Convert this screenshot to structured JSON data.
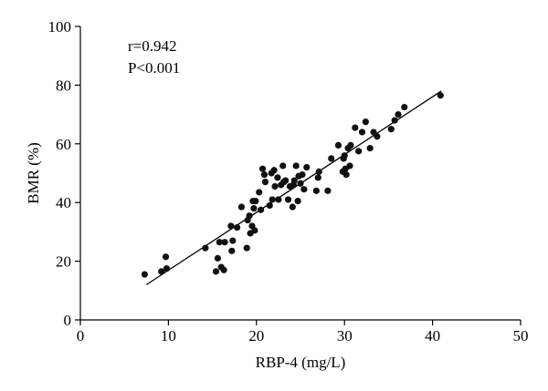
{
  "chart_data": {
    "type": "scatter",
    "xlabel": "RBP-4 (mg/L)",
    "ylabel": "BMR (%)",
    "xlim": [
      0,
      50
    ],
    "ylim": [
      0,
      100
    ],
    "xticks": [
      0,
      10,
      20,
      30,
      40,
      50
    ],
    "yticks": [
      0,
      20,
      40,
      60,
      80,
      100
    ],
    "annotations": [
      "r=0.942",
      "P<0.001"
    ],
    "grid": false,
    "legend": "none",
    "point_color": "#111111",
    "fit_line": {
      "x": [
        7.5,
        41
      ],
      "y": [
        12,
        78
      ]
    },
    "points": [
      [
        7.3,
        15.5
      ],
      [
        9.2,
        16.5
      ],
      [
        9.7,
        21.5
      ],
      [
        9.8,
        17.5
      ],
      [
        14.2,
        24.5
      ],
      [
        15.4,
        16.5
      ],
      [
        15.6,
        21
      ],
      [
        15.8,
        26.5
      ],
      [
        16.0,
        18
      ],
      [
        16.3,
        17
      ],
      [
        16.4,
        26.5
      ],
      [
        17.1,
        32
      ],
      [
        17.2,
        23.5
      ],
      [
        17.3,
        27
      ],
      [
        17.8,
        31.5
      ],
      [
        18.3,
        38.5
      ],
      [
        18.9,
        24.5
      ],
      [
        19.0,
        34
      ],
      [
        19.2,
        35.5
      ],
      [
        19.3,
        29.5
      ],
      [
        19.5,
        32
      ],
      [
        19.6,
        40.5
      ],
      [
        19.7,
        38
      ],
      [
        19.8,
        30.5
      ],
      [
        19.9,
        40.5
      ],
      [
        20.3,
        43.5
      ],
      [
        20.5,
        37.5
      ],
      [
        20.7,
        51.5
      ],
      [
        20.9,
        49.5
      ],
      [
        21.0,
        47
      ],
      [
        21.5,
        39
      ],
      [
        21.7,
        50
      ],
      [
        21.8,
        41
      ],
      [
        22.0,
        51
      ],
      [
        22.1,
        45.5
      ],
      [
        22.4,
        48.5
      ],
      [
        22.5,
        41
      ],
      [
        22.8,
        46
      ],
      [
        23.0,
        52.5
      ],
      [
        23.1,
        47
      ],
      [
        23.3,
        47.5
      ],
      [
        23.6,
        41
      ],
      [
        23.8,
        45.5
      ],
      [
        24.1,
        38.5
      ],
      [
        24.2,
        46
      ],
      [
        24.3,
        47.5
      ],
      [
        24.5,
        52.5
      ],
      [
        24.7,
        40.5
      ],
      [
        24.8,
        49
      ],
      [
        25.0,
        46.5
      ],
      [
        25.2,
        49.5
      ],
      [
        25.4,
        44.5
      ],
      [
        25.7,
        52
      ],
      [
        26.8,
        44
      ],
      [
        27.0,
        48.5
      ],
      [
        27.1,
        50.5
      ],
      [
        28.1,
        44
      ],
      [
        28.5,
        55
      ],
      [
        29.3,
        59.5
      ],
      [
        29.8,
        50.5
      ],
      [
        29.9,
        55
      ],
      [
        30.0,
        56
      ],
      [
        30.1,
        51.5
      ],
      [
        30.2,
        49.5
      ],
      [
        30.4,
        58.5
      ],
      [
        30.6,
        52.5
      ],
      [
        30.7,
        59.5
      ],
      [
        31.2,
        65.5
      ],
      [
        31.6,
        57.5
      ],
      [
        32.0,
        64
      ],
      [
        32.4,
        67.5
      ],
      [
        32.9,
        58.5
      ],
      [
        33.3,
        64
      ],
      [
        33.7,
        62.5
      ],
      [
        35.3,
        65
      ],
      [
        35.7,
        68
      ],
      [
        36.1,
        70
      ],
      [
        36.8,
        72.5
      ],
      [
        40.9,
        76.5
      ]
    ]
  }
}
